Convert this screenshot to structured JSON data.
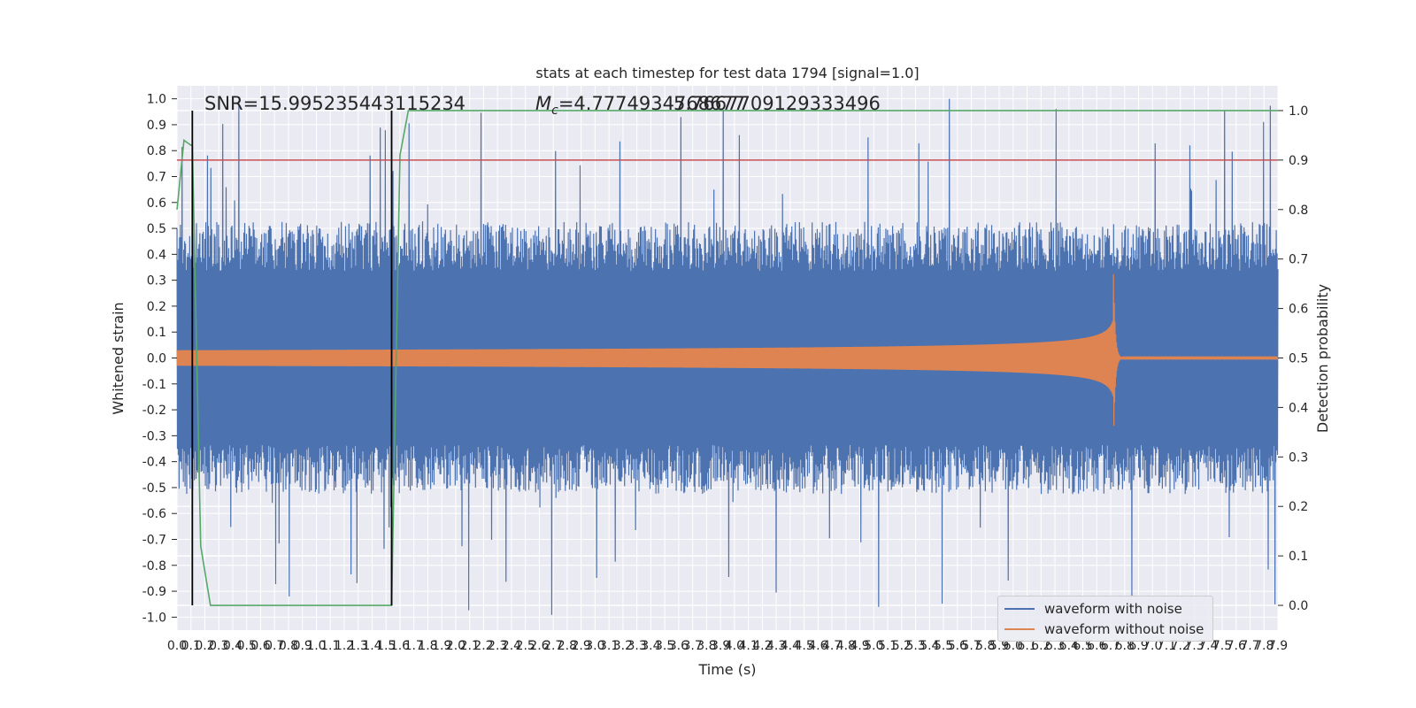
{
  "chart_data": {
    "type": "line",
    "title": "stats at each timestep for test data 1794 [signal=1.0]",
    "xlabel": "Time (s)",
    "ylabel": "Whitened strain",
    "ylabel_right": "Detection probability",
    "xlim": [
      0.0,
      7.9
    ],
    "ylim": [
      -1.05,
      1.05
    ],
    "ylim_right": [
      -0.05,
      1.05
    ],
    "x_tick_step": 0.1,
    "y_ticks": [
      -1.0,
      -0.9,
      -0.8,
      -0.7,
      -0.6,
      -0.5,
      -0.4,
      -0.3,
      -0.2,
      -0.1,
      0.0,
      0.1,
      0.2,
      0.3,
      0.4,
      0.5,
      0.6,
      0.7,
      0.8,
      0.9,
      1.0
    ],
    "y_ticks_right": [
      0.0,
      0.1,
      0.2,
      0.3,
      0.4,
      0.5,
      0.6,
      0.7,
      0.8,
      0.9,
      1.0
    ],
    "grid": true,
    "legend_position": "lower-right",
    "annotations": {
      "snr": "SNR=15.995235443115234",
      "mc": "=4.7774934768677",
      "mc_overlap": "5.7667709129333496"
    },
    "threshold_line": {
      "axis": "right",
      "value": 0.9,
      "color": "#c44e52"
    },
    "vertical_lines": [
      0.11,
      1.54
    ],
    "series": [
      {
        "name": "waveform with noise",
        "color": "#4c72b0",
        "axis": "left",
        "description_envelope": {
          "typical_amplitude": 0.42,
          "peak_amplitude": 1.0
        }
      },
      {
        "name": "waveform without noise",
        "color": "#dd8452",
        "axis": "left",
        "chirp": {
          "start_amplitude": 0.03,
          "merger_time": 6.72,
          "merger_amplitude": 0.33
        }
      },
      {
        "name": "",
        "color": "#55a868",
        "axis": "right",
        "x": [
          0.0,
          0.05,
          0.1,
          0.11,
          0.17,
          0.24,
          0.5,
          1.0,
          1.5,
          1.53,
          1.54,
          1.6,
          1.66,
          7.9
        ],
        "y": [
          0.8,
          0.94,
          0.93,
          0.93,
          0.12,
          0.0,
          0.0,
          0.0,
          0.0,
          0.0,
          0.0,
          0.91,
          1.0,
          1.0
        ]
      }
    ]
  },
  "legend": {
    "items": [
      {
        "label": "waveform with noise",
        "color": "#4c72b0"
      },
      {
        "label": "waveform without noise",
        "color": "#dd8452"
      }
    ]
  }
}
